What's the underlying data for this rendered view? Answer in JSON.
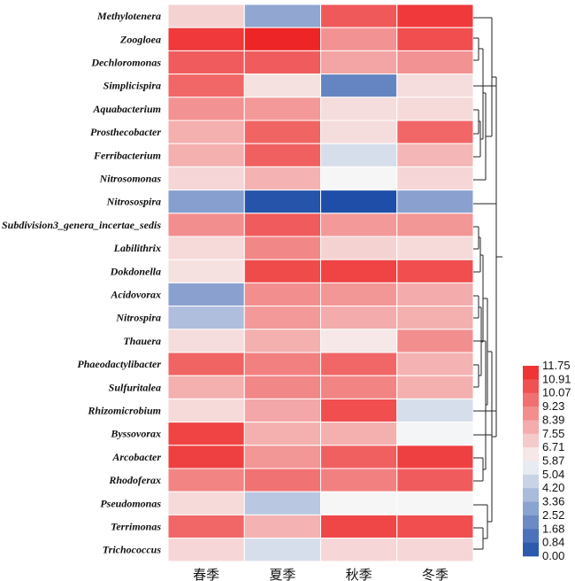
{
  "chart_data": {
    "type": "heatmap",
    "columns": [
      "春季",
      "夏季",
      "秋季",
      "冬季"
    ],
    "rows": [
      "Methylotenera",
      "Zoogloea",
      "Dechloromonas",
      "Simplicispira",
      "Aquabacterium",
      "Prosthecobacter",
      "Ferribacterium",
      "Nitrosomonas",
      "Nitrosospira",
      "Subdivision3_genera_incertae_sedis",
      "Labilithrix",
      "Dokdonella",
      "Acidovorax",
      "Nitrospira",
      "Thauera",
      "Phaeodactylibacter",
      "Sulfuritalea",
      "Rhizomicrobium",
      "Byssovorax",
      "Arcobacter",
      "Rhodoferax",
      "Pseudomonas",
      "Terrimonas",
      "Trichococcus"
    ],
    "values": [
      [
        6.9,
        3.1,
        10.3,
        11.2
      ],
      [
        11.2,
        11.75,
        8.7,
        10.6
      ],
      [
        10.2,
        10.2,
        8.2,
        8.7
      ],
      [
        9.9,
        6.5,
        1.9,
        6.6
      ],
      [
        8.7,
        8.5,
        6.6,
        6.7
      ],
      [
        7.9,
        10.0,
        6.6,
        9.9
      ],
      [
        7.9,
        10.1,
        5.0,
        7.7
      ],
      [
        6.8,
        7.8,
        5.9,
        6.8
      ],
      [
        2.8,
        0.2,
        0.0,
        2.9
      ],
      [
        8.8,
        10.2,
        8.5,
        8.6
      ],
      [
        6.7,
        9.0,
        6.9,
        6.7
      ],
      [
        6.5,
        10.7,
        10.9,
        10.6
      ],
      [
        2.9,
        8.8,
        8.6,
        8.0
      ],
      [
        3.9,
        8.5,
        8.0,
        7.9
      ],
      [
        6.6,
        7.9,
        6.3,
        8.8
      ],
      [
        10.0,
        9.2,
        9.9,
        7.8
      ],
      [
        7.9,
        9.0,
        9.1,
        7.9
      ],
      [
        6.7,
        8.1,
        10.6,
        5.0
      ],
      [
        10.9,
        7.9,
        7.9,
        5.8
      ],
      [
        11.0,
        8.6,
        10.1,
        11.0
      ],
      [
        9.1,
        9.6,
        9.2,
        10.2
      ],
      [
        6.7,
        4.2,
        5.9,
        5.9
      ],
      [
        9.9,
        7.8,
        10.8,
        10.6
      ],
      [
        6.8,
        5.0,
        6.8,
        6.8
      ]
    ],
    "scale": {
      "min": 0.0,
      "max": 11.75,
      "low_color": "#1f4ea8",
      "mid_color": "#f7f7f7",
      "high_color": "#ee2526",
      "mid_value": 5.87,
      "ticks": [
        "11.75",
        "10.91",
        "10.07",
        "9.23",
        "8.39",
        "7.55",
        "6.71",
        "5.87",
        "5.04",
        "4.20",
        "3.36",
        "2.52",
        "1.68",
        "0.84",
        "0.00"
      ]
    },
    "row_dendrogram": true
  }
}
